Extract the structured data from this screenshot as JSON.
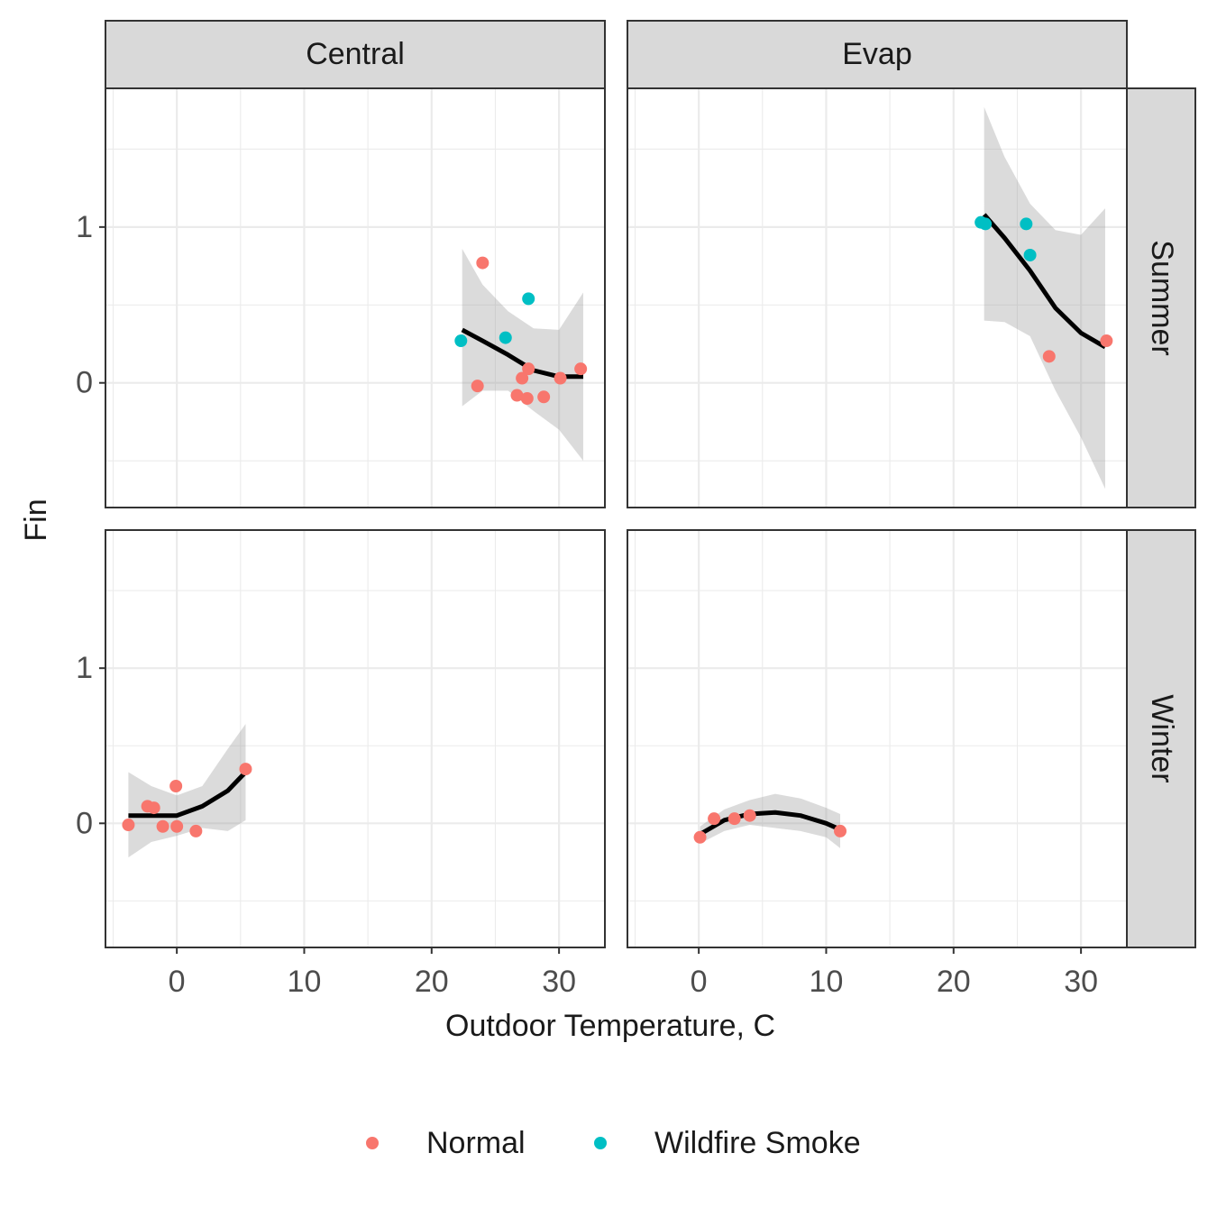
{
  "chart_data": {
    "type": "scatter",
    "xlabel": "Outdoor Temperature, C",
    "ylabel": "Fin",
    "facet_cols": [
      "Central",
      "Evap"
    ],
    "facet_rows": [
      "Summer",
      "Winter"
    ],
    "xlim": [
      -5.6,
      33.6
    ],
    "xticks": [
      0,
      10,
      20,
      30
    ],
    "xminor": [
      -5,
      5,
      15,
      25
    ],
    "ylim": [
      -0.8,
      1.89
    ],
    "yticks": [
      0,
      1
    ],
    "yminor": [
      -0.5,
      0.5,
      1.5
    ],
    "grid": true,
    "legend": "bottom",
    "series": [
      {
        "name": "Normal",
        "color": "#F8766D"
      },
      {
        "name": "Wildfire Smoke",
        "color": "#00BFC4"
      }
    ],
    "panels": [
      [
        {
          "series": [
            {
              "x": [
                24.0,
                23.6,
                26.7,
                27.1,
                27.5,
                27.6,
                28.8,
                30.1,
                31.7
              ],
              "y": [
                0.77,
                -0.02,
                -0.08,
                0.03,
                -0.1,
                0.09,
                -0.09,
                0.03,
                0.09
              ]
            },
            {
              "x": [
                22.3,
                25.8,
                27.6
              ],
              "y": [
                0.27,
                0.29,
                0.54
              ]
            }
          ],
          "smooth": {
            "x": [
              22.4,
              24,
              26,
              28,
              30,
              31.9
            ],
            "y": [
              0.34,
              0.27,
              0.18,
              0.08,
              0.04,
              0.04
            ],
            "lower": [
              -0.15,
              -0.05,
              -0.05,
              -0.18,
              -0.3,
              -0.5
            ],
            "upper": [
              0.86,
              0.63,
              0.46,
              0.35,
              0.34,
              0.58
            ]
          }
        },
        {
          "series": [
            {
              "x": [
                27.5,
                32.0
              ],
              "y": [
                0.17,
                0.27
              ]
            },
            {
              "x": [
                22.15,
                22.5,
                25.7,
                26.0
              ],
              "y": [
                1.03,
                1.02,
                1.02,
                0.82
              ]
            }
          ],
          "smooth": {
            "x": [
              22.4,
              24,
              26,
              28,
              30,
              31.9
            ],
            "y": [
              1.08,
              0.93,
              0.72,
              0.48,
              0.32,
              0.23
            ],
            "lower": [
              0.4,
              0.39,
              0.3,
              -0.05,
              -0.35,
              -0.68
            ],
            "upper": [
              1.77,
              1.45,
              1.15,
              0.98,
              0.95,
              1.12
            ]
          }
        }
      ],
      [
        {
          "series": [
            {
              "x": [
                -3.8,
                -2.3,
                -1.8,
                -1.1,
                -0.07,
                0,
                1.5,
                5.4
              ],
              "y": [
                -0.01,
                0.11,
                0.1,
                -0.02,
                0.24,
                -0.02,
                -0.05,
                0.35
              ]
            },
            {
              "x": [],
              "y": []
            }
          ],
          "smooth": {
            "x": [
              -3.8,
              -2,
              0,
              2,
              4,
              5.4
            ],
            "y": [
              0.05,
              0.05,
              0.05,
              0.11,
              0.21,
              0.33
            ],
            "lower": [
              -0.22,
              -0.12,
              -0.08,
              -0.03,
              -0.05,
              0.02
            ],
            "upper": [
              0.33,
              0.24,
              0.18,
              0.24,
              0.48,
              0.64
            ]
          }
        },
        {
          "series": [
            {
              "x": [
                0.1,
                1.2,
                2.8,
                4.0,
                11.1
              ],
              "y": [
                -0.09,
                0.03,
                0.03,
                0.05,
                -0.05
              ]
            },
            {
              "x": [],
              "y": []
            }
          ],
          "smooth": {
            "x": [
              0.1,
              2,
              4,
              6,
              8,
              10,
              11.1
            ],
            "y": [
              -0.07,
              0.02,
              0.06,
              0.07,
              0.05,
              0.0,
              -0.04
            ],
            "lower": [
              -0.13,
              -0.05,
              -0.01,
              -0.03,
              -0.05,
              -0.09,
              -0.16
            ],
            "upper": [
              -0.02,
              0.09,
              0.15,
              0.19,
              0.16,
              0.1,
              0.06
            ]
          }
        }
      ]
    ]
  }
}
